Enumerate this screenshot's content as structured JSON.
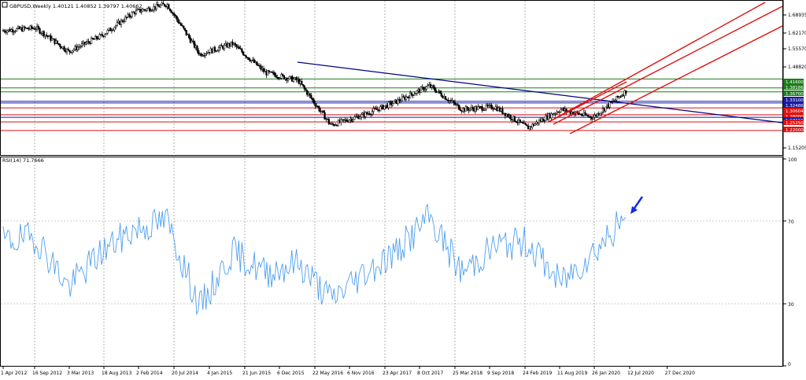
{
  "price_pane": {
    "header": "GBPUSD,Weekly  1.40121 1.40852 1.39797 1.40662",
    "axis_labels": [
      "1.68935",
      "1.62170",
      "1.55570",
      "1.48820",
      "1.15205"
    ],
    "level_labels": [
      {
        "text": "1.41600",
        "color": "#1b7d1b"
      },
      {
        "text": "1.38186",
        "color": "#1b7d1b"
      },
      {
        "text": "1.36700",
        "color": "#1b7d1b"
      },
      {
        "text": "1.33100",
        "color": "#1a1aa0"
      },
      {
        "text": "1.32486",
        "color": "#1a1aa0"
      },
      {
        "text": "1.30604",
        "color": "#e01010"
      },
      {
        "text": "1.28000",
        "color": "#e01010"
      },
      {
        "text": "1.27000",
        "color": "#1a1aa0"
      },
      {
        "text": "1.25250",
        "color": "#e01010"
      },
      {
        "text": "1.22000",
        "color": "#e01010"
      }
    ]
  },
  "rsi_pane": {
    "header": "RSI(14) 71.7666",
    "axis_labels": [
      "100",
      "70",
      "30",
      "0"
    ]
  },
  "time_axis": [
    "1 Apr 2012",
    "16 Sep 2012",
    "3 Mar 2013",
    "18 Aug 2013",
    "2 Feb 2014",
    "20 Jul 2014",
    "4 Jan 2015",
    "21 Jun 2015",
    "6 Dec 2015",
    "22 May 2016",
    "6 Nov 2016",
    "23 Apr 2017",
    "8 Oct 2017",
    "25 Mar 2018",
    "9 Sep 2018",
    "24 Feb 2019",
    "11 Aug 2019",
    "26 Jan 2020",
    "12 Jul 2020",
    "27 Dec 2020"
  ],
  "colors": {
    "candle": "#000000",
    "rsi_line": "#4f9fef",
    "support_green": "#1b7d1b",
    "level_red": "#e01010",
    "level_blue": "#1a1aa0",
    "trend_blue": "#000080",
    "channel_red": "#e01010",
    "arrow": "#1030e0",
    "grid": "#808080"
  },
  "chart_data": [
    {
      "type": "line",
      "title": "GBPUSD,Weekly",
      "ohlc_last": {
        "open": 1.40121,
        "high": 1.40852,
        "low": 1.39797,
        "close": 1.40662
      },
      "x": [
        "1 Apr 2012",
        "16 Sep 2012",
        "3 Mar 2013",
        "18 Aug 2013",
        "2 Feb 2014",
        "20 Jul 2014",
        "4 Jan 2015",
        "21 Jun 2015",
        "6 Dec 2015",
        "22 May 2016",
        "6 Nov 2016",
        "23 Apr 2017",
        "8 Oct 2017",
        "25 Mar 2018",
        "9 Sep 2018",
        "24 Feb 2019",
        "11 Aug 2019",
        "26 Jan 2020",
        "12 Jul 2020",
        "27 Dec 2020"
      ],
      "series": [
        {
          "values": [
            1.6,
            1.61,
            1.52,
            1.58,
            1.67,
            1.7,
            1.51,
            1.55,
            1.44,
            1.41,
            1.24,
            1.28,
            1.33,
            1.39,
            1.3,
            1.31,
            1.23,
            1.3,
            1.27,
            1.37
          ]
        }
      ],
      "ylim": [
        1.13,
        1.71
      ],
      "horizontal_levels": [
        1.416,
        1.38186,
        1.367,
        1.331,
        1.32486,
        1.30604,
        1.28,
        1.27,
        1.2525,
        1.22
      ],
      "grid": true
    },
    {
      "type": "line",
      "title": "RSI(14) 71.7666",
      "x": [
        "1 Apr 2012",
        "16 Sep 2012",
        "3 Mar 2013",
        "18 Aug 2013",
        "2 Feb 2014",
        "20 Jul 2014",
        "4 Jan 2015",
        "21 Jun 2015",
        "6 Dec 2015",
        "22 May 2016",
        "6 Nov 2016",
        "23 Apr 2017",
        "8 Oct 2017",
        "25 Mar 2018",
        "9 Sep 2018",
        "24 Feb 2019",
        "11 Aug 2019",
        "26 Jan 2020",
        "12 Jul 2020",
        "27 Dec 2020"
      ],
      "series": [
        {
          "values": [
            60,
            62,
            38,
            55,
            66,
            70,
            28,
            55,
            45,
            50,
            32,
            45,
            55,
            72,
            45,
            58,
            60,
            40,
            55,
            71.77
          ]
        }
      ],
      "ylim": [
        0,
        100
      ],
      "levels": [
        70,
        30
      ],
      "grid": true
    }
  ]
}
